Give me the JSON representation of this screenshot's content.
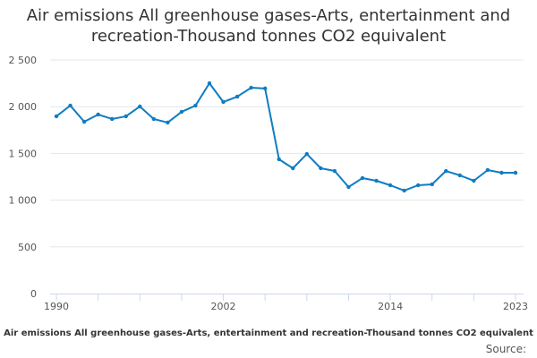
{
  "chart_data": {
    "type": "line",
    "title": "Air emissions All greenhouse gases-Arts, entertainment and recreation-Thousand tonnes CO2 equivalent",
    "caption": "Air emissions All greenhouse gases-Arts, entertainment and recreation-Thousand tonnes CO2 equivalent",
    "source_label": "Source:",
    "x": [
      1990,
      1991,
      1992,
      1993,
      1994,
      1995,
      1996,
      1997,
      1998,
      1999,
      2000,
      2001,
      2002,
      2003,
      2004,
      2005,
      2006,
      2007,
      2008,
      2009,
      2010,
      2011,
      2012,
      2013,
      2014,
      2015,
      2016,
      2017,
      2018,
      2019,
      2020,
      2021,
      2022,
      2023
    ],
    "values": [
      1897,
      2012,
      1839,
      1916,
      1868,
      1897,
      2002,
      1868,
      1830,
      1945,
      2012,
      2251,
      2050,
      2108,
      2203,
      2195,
      1437,
      1341,
      1494,
      1341,
      1312,
      1140,
      1236,
      1207,
      1159,
      1102,
      1159,
      1169,
      1312,
      1265,
      1207,
      1322,
      1293,
      1293
    ],
    "x_tick_labels": [
      "1990",
      "2002",
      "2014",
      "2023"
    ],
    "y_ticks": [
      0,
      500,
      1000,
      1500,
      2000,
      2500
    ],
    "y_tick_labels": [
      "0",
      "500",
      "1 000",
      "1 500",
      "2 000",
      "2 500"
    ],
    "ylim": [
      0,
      2500
    ],
    "xlim": [
      1990,
      2023
    ],
    "grid": true,
    "line_color": "#0f7dc2"
  }
}
